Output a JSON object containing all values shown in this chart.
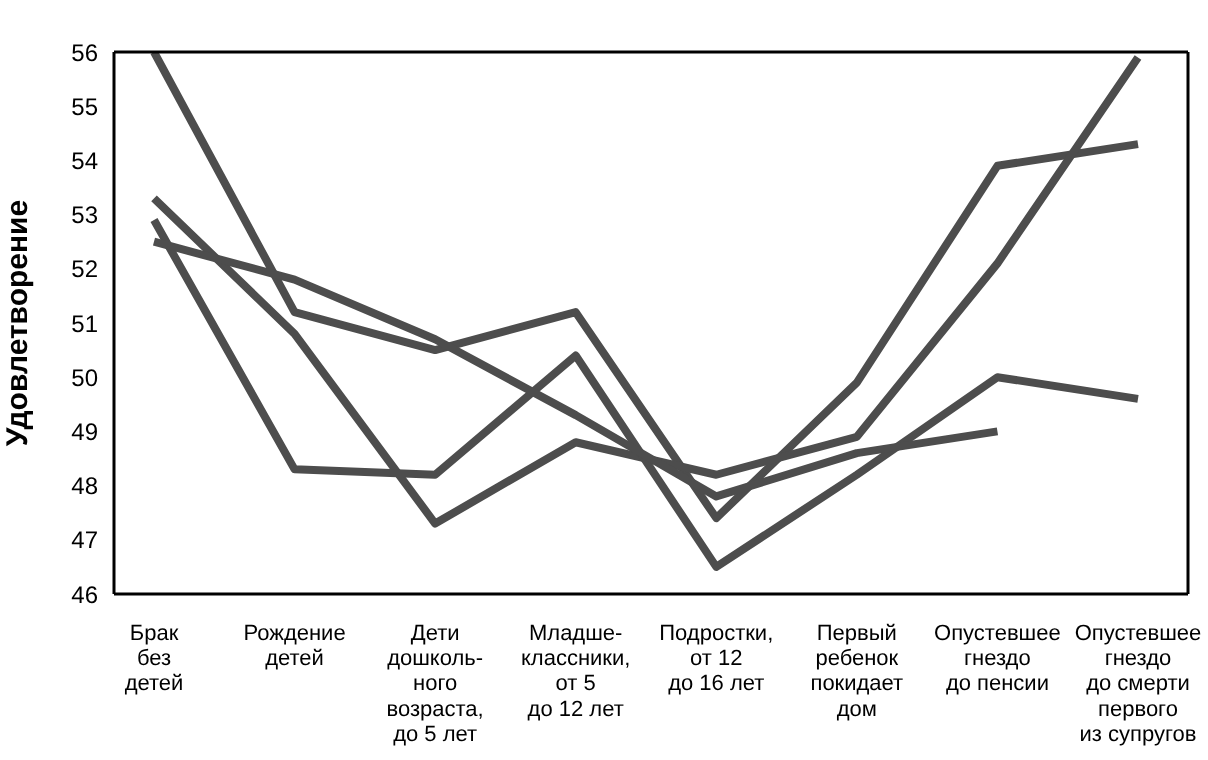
{
  "chart_data": {
    "type": "line",
    "ylabel": "Удовлетворение",
    "categories": [
      "Брак\nбез\nдетей",
      "Рождение\nдетей",
      "Дети\nдошколь-\nного\nвозраста,\nдо 5 лет",
      "Младше-\nклассники,\nот 5\nдо 12 лет",
      "Подростки,\nот 12\nдо 16 лет",
      "Первый\nребенок\nпокидает\nдом",
      "Опустевшее\nгнездо\nдо пенсии",
      "Опустевшее\nгнездо\nдо смерти\nпервого\nиз супругов"
    ],
    "series": [
      {
        "color": "#4d4d4d",
        "values": [
          56,
          51.2,
          50.5,
          51.2,
          47.4,
          49.9,
          53.9,
          54.3
        ]
      },
      {
        "color": "#4d4d4d",
        "values": [
          53.3,
          50.8,
          47.3,
          48.8,
          48.2,
          48.9,
          52.1,
          55.9
        ]
      },
      {
        "color": "#4d4d4d",
        "values": [
          52.9,
          48.3,
          48.2,
          50.4,
          46.5,
          48.2,
          50,
          49.6
        ]
      },
      {
        "color": "#4d4d4d",
        "values": [
          52.5,
          51.8,
          50.7,
          49.3,
          47.8,
          48.6,
          49,
          null
        ]
      }
    ],
    "ylim": [
      46,
      56
    ],
    "yticks": [
      46,
      47,
      48,
      49,
      50,
      51,
      52,
      53,
      54,
      55,
      56
    ],
    "grid": false,
    "legend": false,
    "marker": "none",
    "line_style": "solid"
  }
}
